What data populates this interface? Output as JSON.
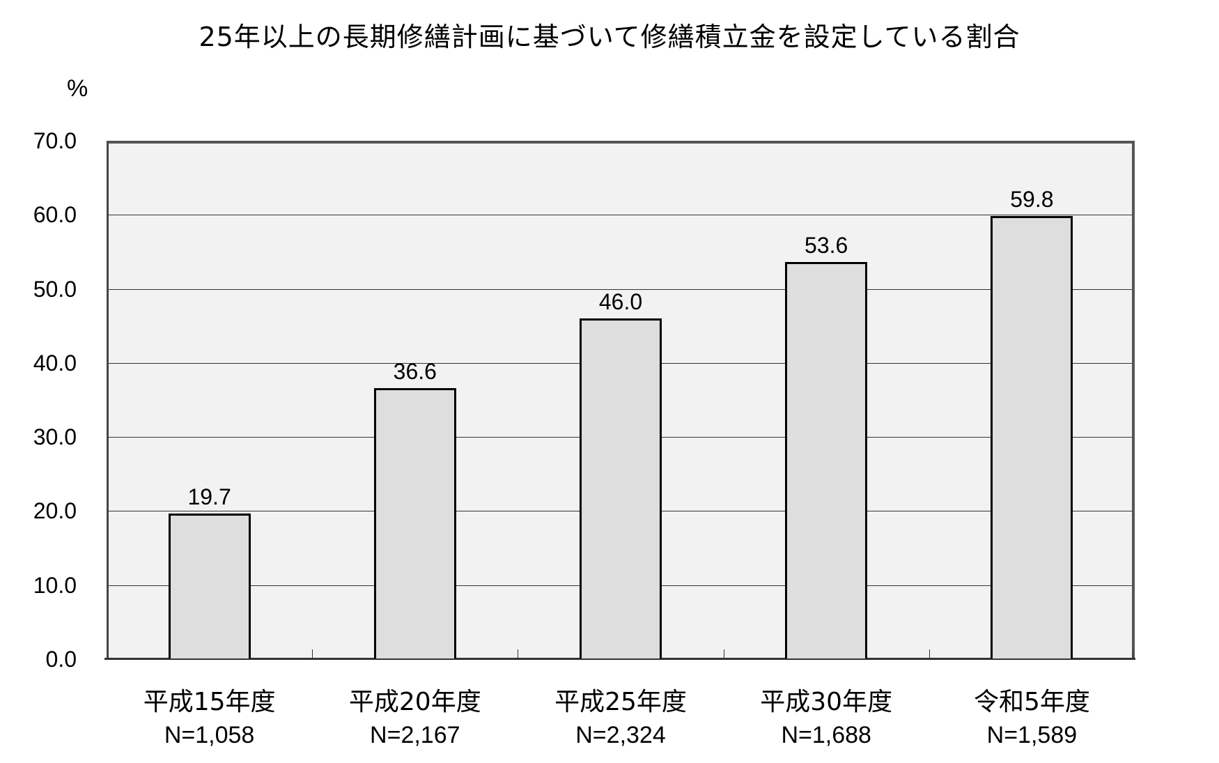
{
  "chart_data": {
    "type": "bar",
    "title": "25年以上の長期修繕計画に基づいて修繕積立金を設定している割合",
    "xlabel": "",
    "ylabel": "%",
    "ylim": [
      0,
      70
    ],
    "yticks": [
      "0.0",
      "10.0",
      "20.0",
      "30.0",
      "40.0",
      "50.0",
      "60.0",
      "70.0"
    ],
    "grid": true,
    "legend": null,
    "categories": [
      "平成15年度",
      "平成20年度",
      "平成25年度",
      "平成30年度",
      "令和5年度"
    ],
    "sample_sizes": [
      "N=1,058",
      "N=2,167",
      "N=2,324",
      "N=1,688",
      "N=1,589"
    ],
    "values": [
      19.7,
      36.6,
      46.0,
      53.6,
      59.8
    ],
    "value_labels": [
      "19.7",
      "36.6",
      "46.0",
      "53.6",
      "59.8"
    ]
  },
  "colors": {
    "plot_background": "#f2f2f2",
    "bar_fill": "#dedede",
    "bar_border": "#000000",
    "gridline": "#333333"
  }
}
